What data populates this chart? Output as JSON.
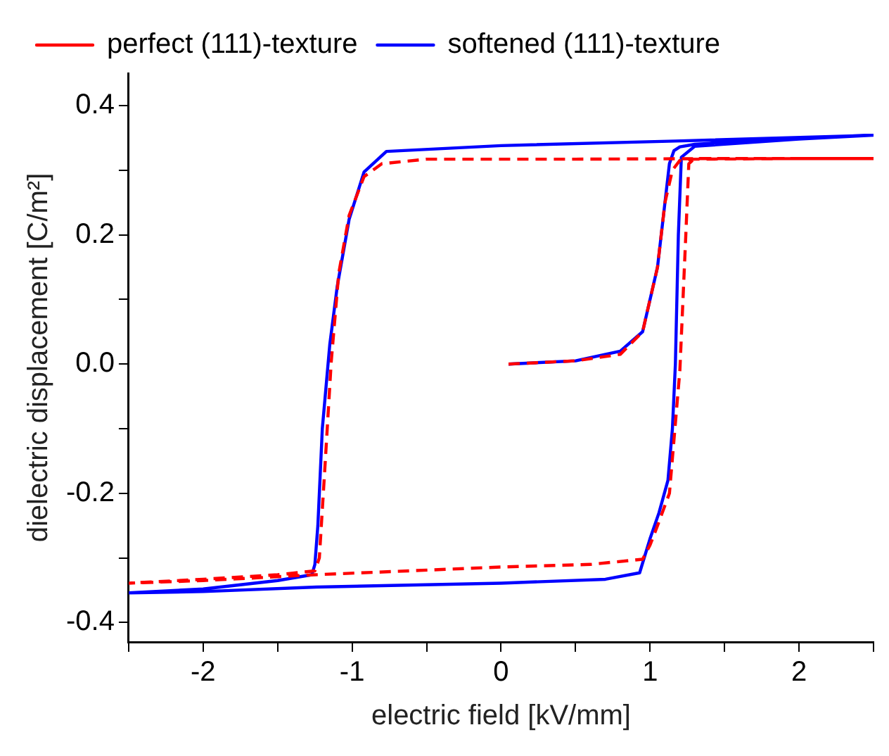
{
  "chart_data": {
    "type": "line",
    "xlabel": "electric field [kV/mm]",
    "ylabel": "dielectric displacement [C/m²]",
    "xlim": [
      -2.5,
      2.5
    ],
    "ylim": [
      -0.43,
      0.45
    ],
    "xticks": [
      {
        "value": -2.5,
        "label": null
      },
      -2,
      {
        "value": -1.5,
        "label": null
      },
      -1,
      {
        "value": -0.5,
        "label": null
      },
      0,
      {
        "value": 0.5,
        "label": null
      },
      1,
      {
        "value": 1.5,
        "label": null
      },
      2,
      {
        "value": 2.5,
        "label": null
      }
    ],
    "yticks": [
      -0.4,
      {
        "value": -0.3,
        "label": null
      },
      -0.2,
      {
        "value": -0.1,
        "label": null
      },
      {
        "value": 0,
        "label": "0.0"
      },
      {
        "value": 0.1,
        "label": null
      },
      0.2,
      {
        "value": 0.3,
        "label": null
      },
      0.4
    ],
    "grid": false,
    "legend": "top left",
    "marker": "none",
    "series": [
      {
        "name": "perfect (111)-texture",
        "color": "#ff0000",
        "line_style": "dashed",
        "x": [
          0.05,
          0.5,
          0.8,
          0.95,
          1.05,
          1.1,
          1.15,
          1.2,
          1.3,
          2.0,
          2.5,
          1.5,
          0.5,
          -0.5,
          -0.8,
          -0.92,
          -1.02,
          -1.09,
          -1.14,
          -1.18,
          -1.22,
          -1.25,
          -1.5,
          -2.0,
          -2.5,
          -2.0,
          -1.25,
          0.0,
          0.6,
          0.95,
          1.0,
          1.05,
          1.13,
          1.2,
          1.24,
          1.26,
          1.3,
          2.0,
          2.5
        ],
        "values": [
          0.0,
          0.005,
          0.015,
          0.05,
          0.15,
          0.25,
          0.3,
          0.315,
          0.317,
          0.318,
          0.318,
          0.318,
          0.317,
          0.317,
          0.31,
          0.29,
          0.23,
          0.14,
          0.004,
          -0.15,
          -0.3,
          -0.32,
          -0.326,
          -0.333,
          -0.339,
          -0.335,
          -0.326,
          -0.314,
          -0.31,
          -0.302,
          -0.28,
          -0.25,
          -0.2,
          -0.01,
          0.2,
          0.31,
          0.318,
          0.318,
          0.318
        ]
      },
      {
        "name": "softened (111)-texture",
        "color": "#0000ff",
        "line_style": "solid",
        "x": [
          0.05,
          0.5,
          0.8,
          0.95,
          1.05,
          1.1,
          1.13,
          1.16,
          1.2,
          1.3,
          2.0,
          2.5,
          1.17,
          0.0,
          -0.77,
          -0.92,
          -1.02,
          -1.1,
          -1.15,
          -1.2,
          -1.23,
          -1.25,
          -1.27,
          -1.5,
          -2.0,
          -2.5,
          -2.0,
          -1.24,
          0.0,
          0.7,
          0.93,
          1.0,
          1.06,
          1.12,
          1.15,
          1.17,
          1.19,
          1.21,
          1.3,
          2.0,
          2.5
        ],
        "values": [
          0.0,
          0.005,
          0.02,
          0.05,
          0.15,
          0.25,
          0.31,
          0.33,
          0.336,
          0.34,
          0.35,
          0.354,
          0.345,
          0.338,
          0.329,
          0.297,
          0.224,
          0.12,
          0.03,
          -0.1,
          -0.25,
          -0.31,
          -0.326,
          -0.335,
          -0.348,
          -0.354,
          -0.352,
          -0.345,
          -0.339,
          -0.333,
          -0.323,
          -0.27,
          -0.23,
          -0.18,
          -0.1,
          0.0,
          0.2,
          0.32,
          0.337,
          0.348,
          0.354
        ]
      }
    ]
  }
}
